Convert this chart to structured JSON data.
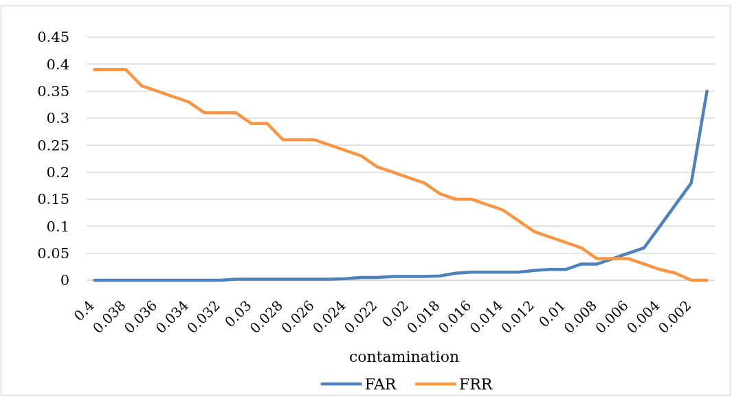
{
  "chart_data": {
    "type": "line",
    "xlabel": "contamination",
    "categories": [
      "0.4",
      null,
      "0.038",
      null,
      "0.036",
      null,
      "0.034",
      null,
      "0.032",
      null,
      "0.03",
      null,
      "0.028",
      null,
      "0.026",
      null,
      "0.024",
      null,
      "0.022",
      null,
      "0.02",
      null,
      "0.018",
      null,
      "0.016",
      null,
      "0.014",
      null,
      "0.012",
      null,
      "0.01",
      null,
      "0.008",
      null,
      "0.006",
      null,
      "0.004",
      null,
      "0.002",
      null
    ],
    "series": [
      {
        "name": "FAR",
        "color": "#4f81bd",
        "values": [
          0,
          0,
          0,
          0,
          0,
          0,
          0,
          0,
          0,
          0.002,
          0.002,
          0.002,
          0.002,
          0.002,
          0.002,
          0.002,
          0.003,
          0.005,
          0.005,
          0.007,
          0.007,
          0.007,
          0.008,
          0.013,
          0.015,
          0.015,
          0.015,
          0.015,
          0.018,
          0.02,
          0.02,
          0.03,
          0.03,
          0.04,
          0.05,
          0.06,
          0.1,
          0.14,
          0.18,
          0.35
        ]
      },
      {
        "name": "FRR",
        "color": "#f79646",
        "values": [
          0.39,
          0.39,
          0.39,
          0.36,
          0.35,
          0.34,
          0.33,
          0.31,
          0.31,
          0.31,
          0.29,
          0.29,
          0.26,
          0.26,
          0.26,
          0.25,
          0.24,
          0.23,
          0.21,
          0.2,
          0.19,
          0.18,
          0.16,
          0.15,
          0.15,
          0.14,
          0.13,
          0.11,
          0.09,
          0.08,
          0.07,
          0.06,
          0.04,
          0.04,
          0.04,
          0.03,
          0.02,
          0.013,
          0,
          0
        ]
      }
    ],
    "ylim": [
      0,
      0.45
    ],
    "yticks": [
      0,
      0.05,
      0.1,
      0.15,
      0.2,
      0.25,
      0.3,
      0.35,
      0.4,
      0.45
    ],
    "grid": "y",
    "legend": "bottom"
  }
}
